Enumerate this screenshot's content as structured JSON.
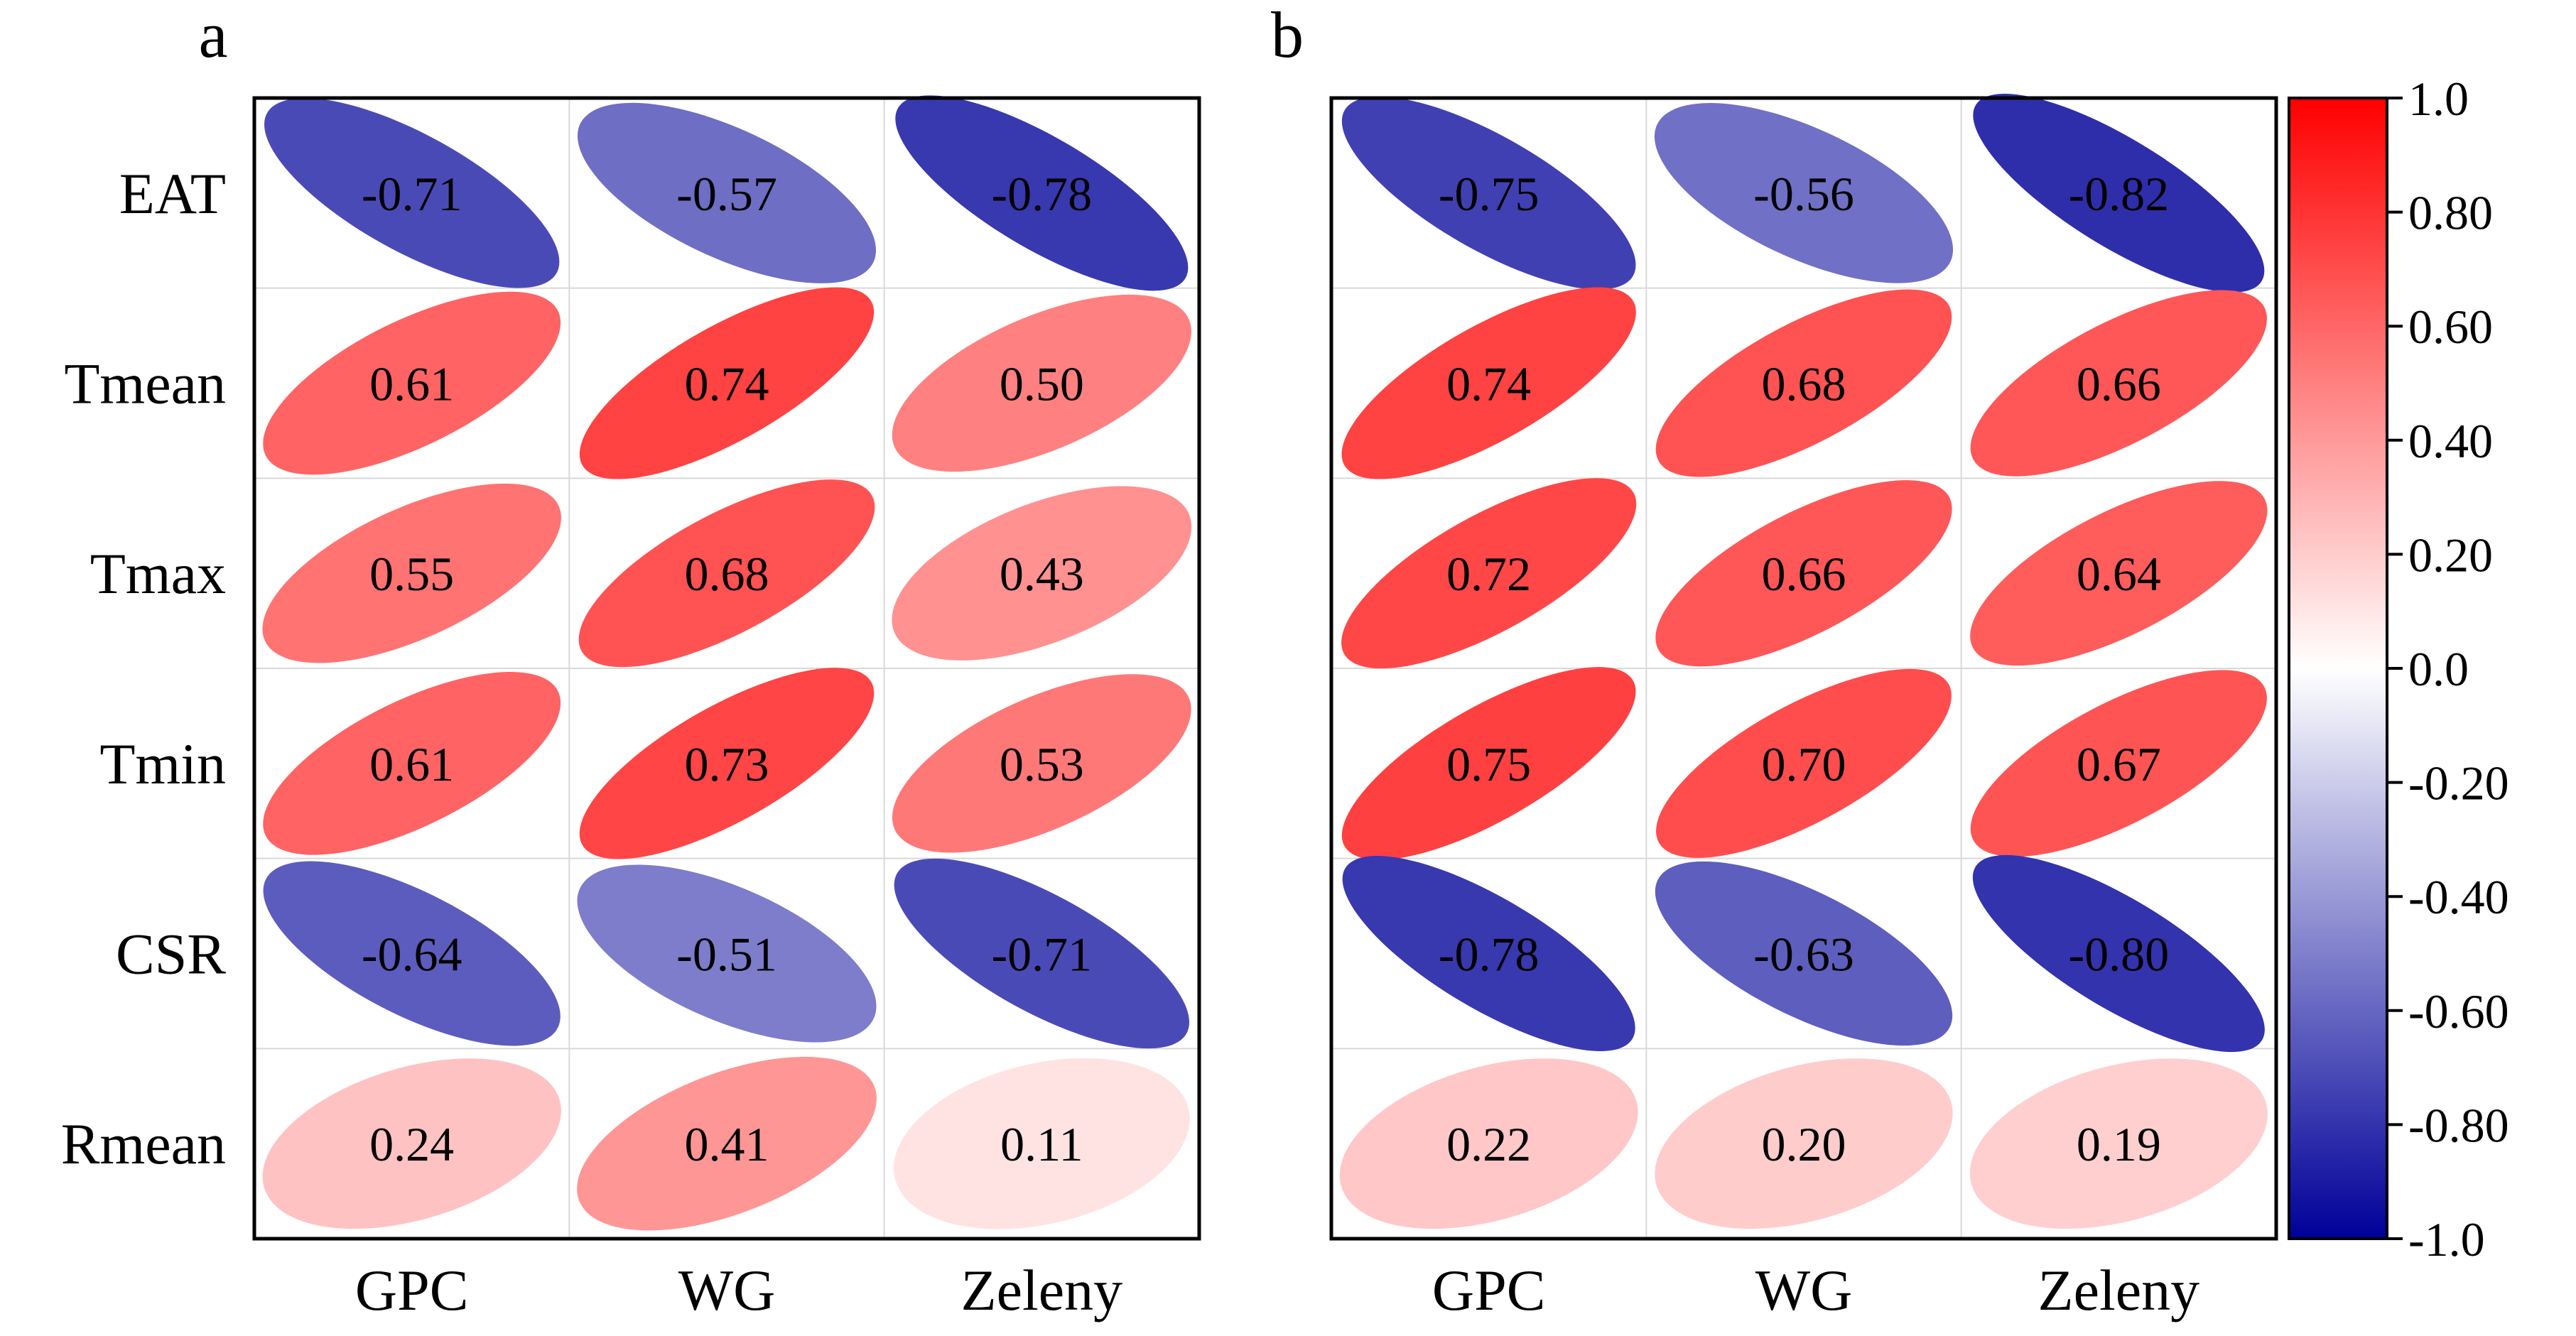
{
  "chart_data": [
    {
      "type": "heatmap",
      "panel_label": "a",
      "rows": [
        "EAT",
        "Tmean",
        "Tmax",
        "Tmin",
        "CSR",
        "Rmean"
      ],
      "columns": [
        "GPC",
        "WG",
        "Zeleny"
      ],
      "values": [
        [
          -0.71,
          -0.57,
          -0.78
        ],
        [
          0.61,
          0.74,
          0.5
        ],
        [
          0.55,
          0.68,
          0.43
        ],
        [
          0.61,
          0.73,
          0.53
        ],
        [
          -0.64,
          -0.51,
          -0.71
        ],
        [
          0.24,
          0.41,
          0.11
        ]
      ],
      "value_labels": [
        [
          "-0.71",
          "-0.57",
          "-0.78"
        ],
        [
          "0.61",
          "0.74",
          "0.50"
        ],
        [
          "0.55",
          "0.68",
          "0.43"
        ],
        [
          "0.61",
          "0.73",
          "0.53"
        ],
        [
          "-0.64",
          "-0.51",
          "-0.71"
        ],
        [
          "0.24",
          "0.41",
          "0.11"
        ]
      ]
    },
    {
      "type": "heatmap",
      "panel_label": "b",
      "rows": [
        "EAT",
        "Tmean",
        "Tmax",
        "Tmin",
        "CSR",
        "Rmean"
      ],
      "columns": [
        "GPC",
        "WG",
        "Zeleny"
      ],
      "values": [
        [
          -0.75,
          -0.56,
          -0.82
        ],
        [
          0.74,
          0.68,
          0.66
        ],
        [
          0.72,
          0.66,
          0.64
        ],
        [
          0.75,
          0.7,
          0.67
        ],
        [
          -0.78,
          -0.63,
          -0.8
        ],
        [
          0.22,
          0.2,
          0.19
        ]
      ],
      "value_labels": [
        [
          "-0.75",
          "-0.56",
          "-0.82"
        ],
        [
          "0.74",
          "0.68",
          "0.66"
        ],
        [
          "0.72",
          "0.66",
          "0.64"
        ],
        [
          "0.75",
          "0.70",
          "0.67"
        ],
        [
          "-0.78",
          "-0.63",
          "-0.80"
        ],
        [
          "0.22",
          "0.20",
          "0.19"
        ]
      ]
    }
  ],
  "colorbar": {
    "range": [
      -1.0,
      1.0
    ],
    "tick_values": [
      1.0,
      0.8,
      0.6,
      0.4,
      0.2,
      0.0,
      -0.2,
      -0.4,
      -0.6,
      -0.8,
      -1.0
    ],
    "tick_labels": [
      "1.0",
      "0.80",
      "0.60",
      "0.40",
      "0.20",
      "0.0",
      "-0.20",
      "-0.40",
      "-0.60",
      "-0.80",
      "-1.0"
    ],
    "colors": {
      "high": "#ff0000",
      "mid": "#ffffff",
      "low": "#000099"
    }
  }
}
